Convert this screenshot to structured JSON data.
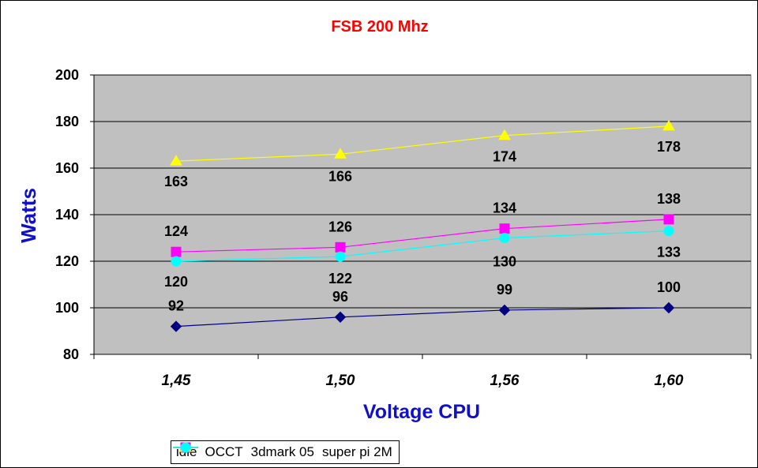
{
  "chart_data": {
    "type": "line",
    "title": "FSB 200 Mhz",
    "xlabel": "Voltage CPU",
    "ylabel": "Watts",
    "categories": [
      "1,45",
      "1,50",
      "1,56",
      "1,60"
    ],
    "ylim": [
      80,
      200
    ],
    "yticks": [
      80,
      100,
      120,
      140,
      160,
      180,
      200
    ],
    "grid": true,
    "legend_position": "bottom",
    "plot_background": "#c0c0c0",
    "series": [
      {
        "name": "idle",
        "values": [
          92,
          96,
          99,
          100
        ],
        "color": "#000080",
        "marker": "diamond"
      },
      {
        "name": "OCCT",
        "values": [
          124,
          126,
          134,
          138
        ],
        "color": "#ff00ff",
        "marker": "square"
      },
      {
        "name": "3dmark 05",
        "values": [
          163,
          166,
          174,
          178
        ],
        "color": "#ffff00",
        "marker": "triangle"
      },
      {
        "name": "super pi 2M",
        "values": [
          120,
          122,
          130,
          133
        ],
        "color": "#00ffff",
        "marker": "circle"
      }
    ]
  }
}
